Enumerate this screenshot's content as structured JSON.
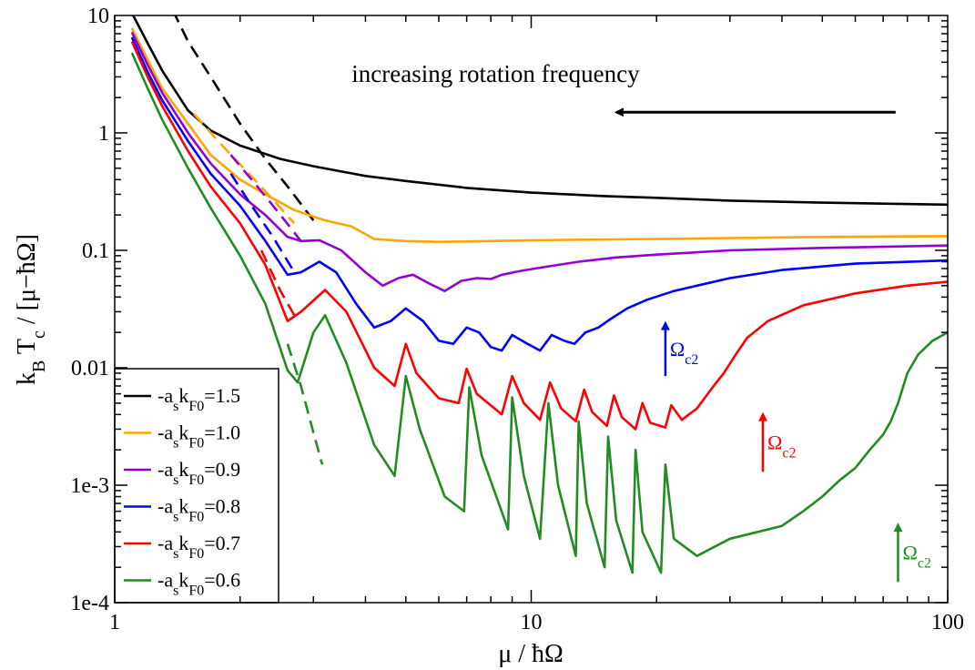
{
  "chart_data": {
    "type": "line",
    "title": "",
    "xlabel": "μ / ħΩ",
    "ylabel": "k_B T_c / [μ−ħΩ]",
    "xscale": "log",
    "yscale": "log",
    "xlim": [
      1,
      100
    ],
    "ylim": [
      0.0001,
      10
    ],
    "grid": false,
    "legend_position": "bottom-left",
    "x_ticks": [
      {
        "value": 1,
        "label": "1"
      },
      {
        "value": 10,
        "label": "10"
      },
      {
        "value": 100,
        "label": "100"
      }
    ],
    "y_ticks": [
      {
        "value": 0.0001,
        "label": "1e-4"
      },
      {
        "value": 0.001,
        "label": "1e-3"
      },
      {
        "value": 0.01,
        "label": "0.01"
      },
      {
        "value": 0.1,
        "label": "0.1"
      },
      {
        "value": 1,
        "label": "1"
      },
      {
        "value": 10,
        "label": "10"
      }
    ],
    "annotation": {
      "text": "increasing rotation frequency",
      "arrow_direction": "left",
      "arrow_from": [
        75,
        1.5
      ],
      "arrow_to": [
        16,
        1.5
      ],
      "text_anchor": [
        3.8,
        3.2
      ]
    },
    "series": [
      {
        "name": "-a_s k_F0=1.5",
        "color": "#000000",
        "solid": [
          [
            1.1,
            10.5
          ],
          [
            1.2,
            5.8
          ],
          [
            1.3,
            3.4
          ],
          [
            1.5,
            1.55
          ],
          [
            1.7,
            1.05
          ],
          [
            2.0,
            0.78
          ],
          [
            2.5,
            0.6
          ],
          [
            3.0,
            0.52
          ],
          [
            4.0,
            0.43
          ],
          [
            5.0,
            0.39
          ],
          [
            7.0,
            0.34
          ],
          [
            10.0,
            0.31
          ],
          [
            15.0,
            0.29
          ],
          [
            20.0,
            0.28
          ],
          [
            30.0,
            0.265
          ],
          [
            50.0,
            0.255
          ],
          [
            70.0,
            0.25
          ],
          [
            100.0,
            0.245
          ]
        ],
        "dashed": [
          [
            1.38,
            11.0
          ],
          [
            1.5,
            6.0
          ],
          [
            1.7,
            3.0
          ],
          [
            2.0,
            1.2
          ],
          [
            2.3,
            0.6
          ],
          [
            2.6,
            0.35
          ],
          [
            3.0,
            0.18
          ]
        ]
      },
      {
        "name": "-a_s k_F0=1.0",
        "color": "#FFA500",
        "solid": [
          [
            1.1,
            7.8
          ],
          [
            1.2,
            4.2
          ],
          [
            1.3,
            2.4
          ],
          [
            1.5,
            1.2
          ],
          [
            1.7,
            0.65
          ],
          [
            2.0,
            0.4
          ],
          [
            2.3,
            0.3
          ],
          [
            2.7,
            0.22
          ],
          [
            3.2,
            0.18
          ],
          [
            3.7,
            0.16
          ],
          [
            4.2,
            0.125
          ],
          [
            5.0,
            0.12
          ],
          [
            6.0,
            0.118
          ],
          [
            8.0,
            0.12
          ],
          [
            10.0,
            0.122
          ],
          [
            20.0,
            0.125
          ],
          [
            50.0,
            0.13
          ],
          [
            100.0,
            0.132
          ]
        ],
        "dashed": [
          [
            1.55,
            1.45
          ],
          [
            1.8,
            0.8
          ],
          [
            2.1,
            0.45
          ],
          [
            2.4,
            0.27
          ],
          [
            2.7,
            0.17
          ]
        ]
      },
      {
        "name": "-a_s k_F0=0.9",
        "color": "#9400D3",
        "solid": [
          [
            1.1,
            7.2
          ],
          [
            1.2,
            3.8
          ],
          [
            1.3,
            2.2
          ],
          [
            1.5,
            1.0
          ],
          [
            1.7,
            0.55
          ],
          [
            2.0,
            0.3
          ],
          [
            2.3,
            0.2
          ],
          [
            2.6,
            0.13
          ],
          [
            2.8,
            0.12
          ],
          [
            3.1,
            0.122
          ],
          [
            3.5,
            0.1
          ],
          [
            4.0,
            0.065
          ],
          [
            4.4,
            0.05
          ],
          [
            4.8,
            0.058
          ],
          [
            5.2,
            0.062
          ],
          [
            5.7,
            0.052
          ],
          [
            6.2,
            0.045
          ],
          [
            6.8,
            0.055
          ],
          [
            7.4,
            0.058
          ],
          [
            8.0,
            0.057
          ],
          [
            8.5,
            0.062
          ],
          [
            9.5,
            0.067
          ],
          [
            11.0,
            0.073
          ],
          [
            13.0,
            0.08
          ],
          [
            16.0,
            0.087
          ],
          [
            20.0,
            0.092
          ],
          [
            30.0,
            0.1
          ],
          [
            50.0,
            0.105
          ],
          [
            100.0,
            0.11
          ]
        ],
        "dashed": [
          [
            1.9,
            0.65
          ],
          [
            2.2,
            0.35
          ],
          [
            2.5,
            0.2
          ],
          [
            2.8,
            0.12
          ]
        ]
      },
      {
        "name": "-a_s k_F0=0.8",
        "color": "#0000FF",
        "solid": [
          [
            1.1,
            6.5
          ],
          [
            1.2,
            3.3
          ],
          [
            1.3,
            1.9
          ],
          [
            1.5,
            0.85
          ],
          [
            1.7,
            0.45
          ],
          [
            2.0,
            0.24
          ],
          [
            2.3,
            0.12
          ],
          [
            2.6,
            0.062
          ],
          [
            2.8,
            0.065
          ],
          [
            3.1,
            0.08
          ],
          [
            3.4,
            0.065
          ],
          [
            3.8,
            0.035
          ],
          [
            4.2,
            0.022
          ],
          [
            4.6,
            0.025
          ],
          [
            5.0,
            0.032
          ],
          [
            5.5,
            0.025
          ],
          [
            6.0,
            0.017
          ],
          [
            6.5,
            0.016
          ],
          [
            7.0,
            0.022
          ],
          [
            7.5,
            0.02
          ],
          [
            8.0,
            0.015
          ],
          [
            8.5,
            0.014
          ],
          [
            9.0,
            0.019
          ],
          [
            9.8,
            0.016
          ],
          [
            10.5,
            0.014
          ],
          [
            11.2,
            0.019
          ],
          [
            12.0,
            0.017
          ],
          [
            12.7,
            0.016
          ],
          [
            13.5,
            0.02
          ],
          [
            14.5,
            0.022
          ],
          [
            15.5,
            0.026
          ],
          [
            17.0,
            0.032
          ],
          [
            19.0,
            0.038
          ],
          [
            22.0,
            0.045
          ],
          [
            25.0,
            0.05
          ],
          [
            30.0,
            0.058
          ],
          [
            40.0,
            0.068
          ],
          [
            60.0,
            0.077
          ],
          [
            100.0,
            0.082
          ]
        ],
        "dashed": [
          [
            1.9,
            0.45
          ],
          [
            2.1,
            0.26
          ],
          [
            2.4,
            0.13
          ],
          [
            2.7,
            0.065
          ]
        ]
      },
      {
        "name": "-a_s k_F0=0.7",
        "color": "#FF0000",
        "solid": [
          [
            1.1,
            6.0
          ],
          [
            1.2,
            3.0
          ],
          [
            1.3,
            1.7
          ],
          [
            1.5,
            0.7
          ],
          [
            1.7,
            0.35
          ],
          [
            2.0,
            0.17
          ],
          [
            2.3,
            0.075
          ],
          [
            2.6,
            0.025
          ],
          [
            2.8,
            0.03
          ],
          [
            3.2,
            0.046
          ],
          [
            3.6,
            0.03
          ],
          [
            4.2,
            0.01
          ],
          [
            4.7,
            0.007
          ],
          [
            5.0,
            0.016
          ],
          [
            5.3,
            0.009
          ],
          [
            6.0,
            0.0055
          ],
          [
            6.7,
            0.005
          ],
          [
            7.0,
            0.0098
          ],
          [
            7.4,
            0.006
          ],
          [
            8.5,
            0.004
          ],
          [
            9.0,
            0.0085
          ],
          [
            9.6,
            0.005
          ],
          [
            10.5,
            0.0036
          ],
          [
            11.1,
            0.0075
          ],
          [
            11.8,
            0.0045
          ],
          [
            12.8,
            0.0035
          ],
          [
            13.4,
            0.0065
          ],
          [
            14.0,
            0.0042
          ],
          [
            15.2,
            0.0032
          ],
          [
            15.8,
            0.0058
          ],
          [
            16.5,
            0.0038
          ],
          [
            17.8,
            0.003
          ],
          [
            18.5,
            0.005
          ],
          [
            19.3,
            0.0034
          ],
          [
            21.0,
            0.0031
          ],
          [
            21.7,
            0.0048
          ],
          [
            23.0,
            0.0036
          ],
          [
            25.0,
            0.0045
          ],
          [
            27.0,
            0.0065
          ],
          [
            29.0,
            0.009
          ],
          [
            31.0,
            0.013
          ],
          [
            33.0,
            0.018
          ],
          [
            37.0,
            0.025
          ],
          [
            45.0,
            0.034
          ],
          [
            60.0,
            0.043
          ],
          [
            80.0,
            0.05
          ],
          [
            100.0,
            0.054
          ]
        ],
        "dashed": [
          [
            2.25,
            0.1
          ],
          [
            2.5,
            0.045
          ],
          [
            2.7,
            0.028
          ]
        ]
      },
      {
        "name": "-a_s k_F0=0.6",
        "color": "#228B22",
        "solid": [
          [
            1.1,
            4.8
          ],
          [
            1.2,
            2.4
          ],
          [
            1.3,
            1.3
          ],
          [
            1.5,
            0.5
          ],
          [
            1.7,
            0.23
          ],
          [
            2.0,
            0.09
          ],
          [
            2.3,
            0.035
          ],
          [
            2.6,
            0.0095
          ],
          [
            2.75,
            0.0075
          ],
          [
            3.0,
            0.02
          ],
          [
            3.2,
            0.028
          ],
          [
            3.6,
            0.011
          ],
          [
            4.2,
            0.0022
          ],
          [
            4.7,
            0.0012
          ],
          [
            5.0,
            0.0085
          ],
          [
            5.4,
            0.003
          ],
          [
            6.2,
            0.0008
          ],
          [
            6.9,
            0.0006
          ],
          [
            7.1,
            0.0068
          ],
          [
            7.6,
            0.0018
          ],
          [
            8.8,
            0.00042
          ],
          [
            9.0,
            0.0056
          ],
          [
            9.6,
            0.0012
          ],
          [
            10.5,
            0.00035
          ],
          [
            11.0,
            0.005
          ],
          [
            11.6,
            0.001
          ],
          [
            12.8,
            0.00025
          ],
          [
            13.0,
            0.0035
          ],
          [
            13.6,
            0.0007
          ],
          [
            15.0,
            0.0002
          ],
          [
            15.3,
            0.0026
          ],
          [
            16.0,
            0.0005
          ],
          [
            17.5,
            0.00018
          ],
          [
            17.8,
            0.002
          ],
          [
            18.5,
            0.0004
          ],
          [
            20.5,
            0.00018
          ],
          [
            21.0,
            0.0015
          ],
          [
            22.0,
            0.00035
          ],
          [
            25.0,
            0.00025
          ],
          [
            30.0,
            0.00035
          ],
          [
            35.0,
            0.0004
          ],
          [
            40.0,
            0.00045
          ],
          [
            45.0,
            0.0006
          ],
          [
            50.0,
            0.0008
          ],
          [
            55.0,
            0.0011
          ],
          [
            60.0,
            0.0014
          ],
          [
            65.0,
            0.002
          ],
          [
            70.0,
            0.0027
          ],
          [
            73.0,
            0.0035
          ],
          [
            76.0,
            0.005
          ],
          [
            80.0,
            0.009
          ],
          [
            85.0,
            0.013
          ],
          [
            92.0,
            0.017
          ],
          [
            100.0,
            0.02
          ]
        ],
        "dashed": [
          [
            2.6,
            0.016
          ],
          [
            2.8,
            0.007
          ],
          [
            3.0,
            0.0028
          ],
          [
            3.15,
            0.0015
          ]
        ]
      }
    ],
    "critical_markers": [
      {
        "label": "Ω",
        "subscript": "c2",
        "color": "#0000FF",
        "x": 21,
        "y_from": 0.0085,
        "y_to": 0.025
      },
      {
        "label": "Ω",
        "subscript": "c2",
        "color": "#FF0000",
        "x": 36,
        "y_from": 0.0013,
        "y_to": 0.0042
      },
      {
        "label": "Ω",
        "subscript": "c2",
        "color": "#228B22",
        "x": 76,
        "y_from": 0.00015,
        "y_to": 0.00048
      }
    ]
  }
}
